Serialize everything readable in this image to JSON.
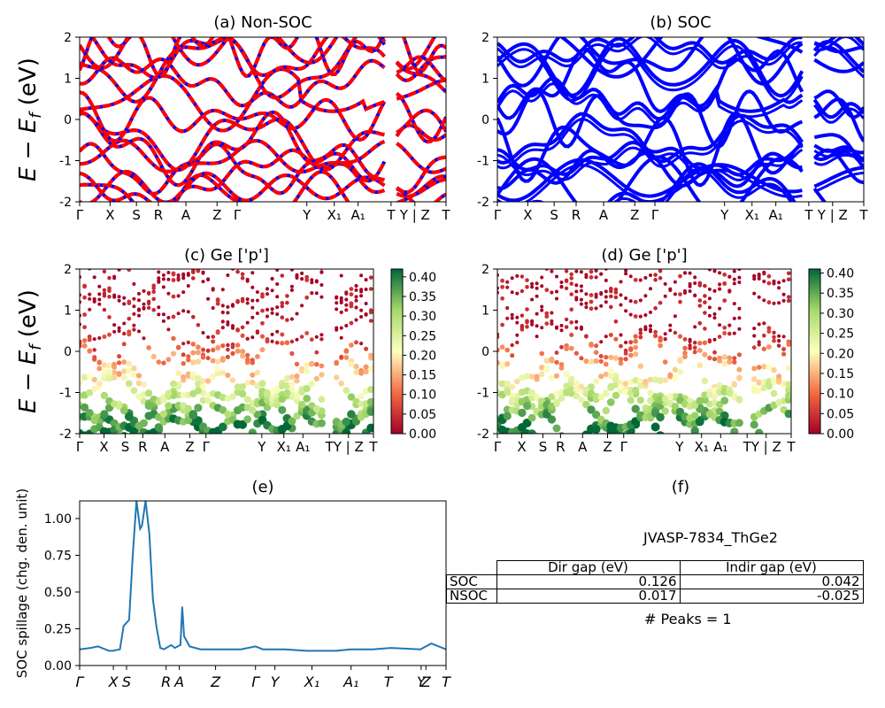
{
  "figure": {
    "material": "JVASP-7834_ThGe2",
    "peaks": "# Peaks = 1"
  },
  "energy_axis_label": "E − E_f (eV)",
  "colors": {
    "nonsoc_red": "#ff0000",
    "nonsoc_blue": "#0000ff",
    "soc_blue": "#0000ff",
    "spillage_line": "#1f77b4"
  },
  "kpath_labels": [
    "Γ",
    "X",
    "S",
    "R",
    "A",
    "Z",
    "Γ",
    "Y",
    "X₁",
    "A₁",
    "T",
    "Y | Z",
    "T"
  ],
  "spillage_tick_labels": [
    "Γ",
    "X",
    "S",
    "R",
    "A",
    "Z",
    "Γ",
    "Y",
    "X₁",
    "A₁",
    "T",
    "Y",
    "Z",
    "T"
  ],
  "chart_data": [
    {
      "id": "a",
      "type": "line",
      "title": "(a) Non-SOC",
      "ylabel": "E − E_f (eV)",
      "ylim": [
        -2,
        2
      ],
      "yticks": [
        -2,
        -1,
        0,
        1,
        2
      ],
      "xticks": [
        "Γ",
        "X",
        "S",
        "R",
        "A",
        "Z",
        "Γ",
        "Y",
        "X₁",
        "A₁",
        "T",
        "Y | Z",
        "T"
      ],
      "series_style": "bands drawn in blue with red dashed overlay",
      "note": "band structure: many bands within ±2 eV; gap near 0 eV around Y–A₁"
    },
    {
      "id": "b",
      "type": "line",
      "title": "(b) SOC",
      "ylim": [
        -2,
        2
      ],
      "yticks": [
        -2,
        -1,
        0,
        1,
        2
      ],
      "xticks": [
        "Γ",
        "X",
        "S",
        "R",
        "A",
        "Z",
        "Γ",
        "Y",
        "X₁",
        "A₁",
        "T",
        "Y | Z",
        "T"
      ],
      "series_style": "bands drawn in blue"
    },
    {
      "id": "c",
      "type": "scatter",
      "title": "(c)  Ge ['p']",
      "ylabel": "E − E_f (eV)",
      "ylim": [
        -2,
        2
      ],
      "yticks": [
        -2,
        -1,
        0,
        1,
        2
      ],
      "xticks": [
        "Γ",
        "X",
        "S",
        "R",
        "A",
        "Z",
        "Γ",
        "Y",
        "X₁",
        "A₁",
        "T",
        "Y | Z",
        "T"
      ],
      "colorbar": {
        "cmap": "RdYlGn",
        "ticks": [
          "0.00",
          "0.05",
          "0.10",
          "0.15",
          "0.20",
          "0.25",
          "0.30",
          "0.35",
          "0.40"
        ],
        "range": [
          0,
          0.42
        ]
      }
    },
    {
      "id": "d",
      "type": "scatter",
      "title": "(d) Ge ['p']",
      "ylim": [
        -2,
        2
      ],
      "yticks": [
        -2,
        -1,
        0,
        1,
        2
      ],
      "xticks": [
        "Γ",
        "X",
        "S",
        "R",
        "A",
        "Z",
        "Γ",
        "Y",
        "X₁",
        "A₁",
        "T",
        "Y | Z",
        "T"
      ],
      "colorbar": {
        "cmap": "RdYlGn",
        "ticks": [
          "0.00",
          "0.05",
          "0.10",
          "0.15",
          "0.20",
          "0.25",
          "0.30",
          "0.35",
          "0.40"
        ],
        "range": [
          0,
          0.41
        ]
      }
    },
    {
      "id": "e",
      "type": "line",
      "title": "(e)",
      "ylabel": "SOC spillage (chg. den. unit)",
      "ylim": [
        0,
        1.12
      ],
      "yticks": [
        "0.00",
        "0.25",
        "0.50",
        "0.75",
        "1.00"
      ],
      "xticks": [
        "Γ",
        "X",
        "S",
        "R",
        "A",
        "Z",
        "Γ",
        "Y",
        "X₁",
        "A₁",
        "T",
        "Y",
        "Z",
        "T"
      ],
      "series": [
        {
          "x": [
            0,
            0.03,
            0.05,
            0.07,
            0.08,
            0.09,
            0.11,
            0.12,
            0.135,
            0.145,
            0.155,
            0.165,
            0.17,
            0.18,
            0.19,
            0.2,
            0.21,
            0.22,
            0.23,
            0.25,
            0.26,
            0.275,
            0.28,
            0.285,
            0.3,
            0.33,
            0.38,
            0.44,
            0.48,
            0.5,
            0.56,
            0.62,
            0.7,
            0.74,
            0.8,
            0.85,
            0.93,
            0.96,
            1.0
          ],
          "y": [
            0.11,
            0.12,
            0.13,
            0.11,
            0.1,
            0.1,
            0.11,
            0.27,
            0.31,
            0.75,
            1.12,
            0.93,
            0.95,
            1.12,
            0.9,
            0.45,
            0.26,
            0.12,
            0.11,
            0.14,
            0.12,
            0.14,
            0.4,
            0.2,
            0.13,
            0.11,
            0.11,
            0.11,
            0.13,
            0.11,
            0.11,
            0.1,
            0.1,
            0.11,
            0.11,
            0.12,
            0.11,
            0.15,
            0.11
          ]
        }
      ]
    },
    {
      "id": "f",
      "type": "table",
      "title": "(f)",
      "columns": [
        "Dir gap (eV)",
        "Indir gap (eV)"
      ],
      "rows": [
        {
          "label": "SOC",
          "values": [
            "0.126",
            "0.042"
          ]
        },
        {
          "label": "NSOC",
          "values": [
            "0.017",
            "-0.025"
          ]
        }
      ]
    }
  ]
}
